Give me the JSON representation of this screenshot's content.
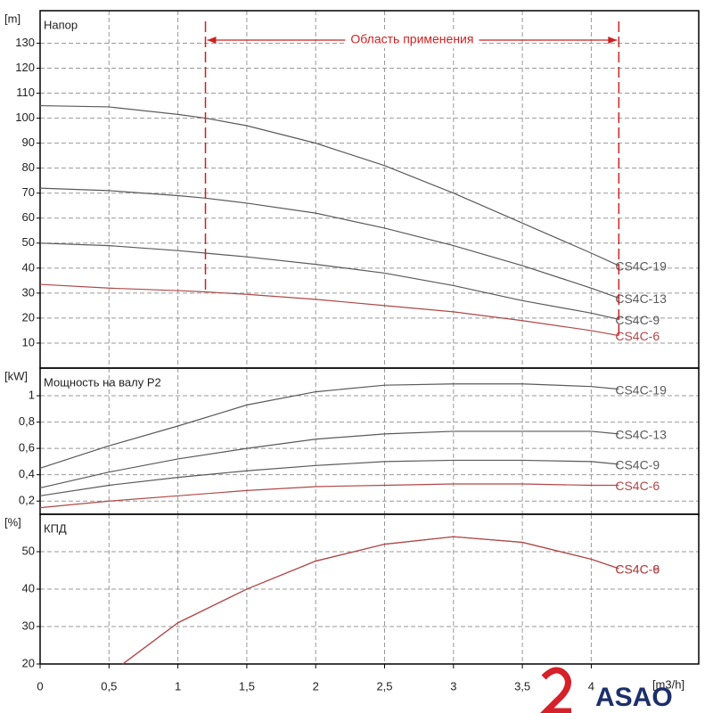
{
  "chart_data": [
    {
      "type": "line",
      "title": "Напор",
      "y_unit": "[m]",
      "x": [
        0,
        0.5,
        1,
        1.2,
        1.5,
        2,
        2.5,
        3,
        3.5,
        4,
        4.2
      ],
      "series": [
        {
          "name": "CS4C-19",
          "color": "#5a5a5a",
          "values": [
            105,
            104.5,
            101.5,
            100,
            97,
            90,
            81,
            70,
            58,
            46,
            41
          ]
        },
        {
          "name": "CS4C-13",
          "color": "#5a5a5a",
          "values": [
            72,
            71,
            69,
            68,
            66,
            62,
            56,
            49,
            41,
            32,
            28
          ]
        },
        {
          "name": "CS4C-9",
          "color": "#5a5a5a",
          "values": [
            50,
            49,
            47,
            46,
            44.5,
            41.5,
            38,
            33,
            27,
            22,
            19.5
          ]
        },
        {
          "name": "CS4C-6",
          "color": "#b04848",
          "values": [
            33.5,
            32,
            31,
            30.5,
            29.5,
            27.5,
            25,
            22.5,
            19,
            15,
            13
          ]
        }
      ],
      "annotation": {
        "text": "Область применения",
        "range": [
          1.2,
          4.2
        ],
        "color": "#cc2222"
      },
      "xlim": [
        0,
        4.78
      ],
      "ylim": [
        0,
        143
      ],
      "yticks": [
        10,
        20,
        30,
        40,
        50,
        60,
        70,
        80,
        90,
        100,
        110,
        120,
        130
      ],
      "grid": true
    },
    {
      "type": "line",
      "title": "Мощность на валу P2",
      "y_unit": "[kW]",
      "x": [
        0,
        0.5,
        1,
        1.5,
        2,
        2.5,
        3,
        3.5,
        4,
        4.2
      ],
      "series": [
        {
          "name": "CS4C-19",
          "color": "#5a5a5a",
          "values": [
            0.45,
            0.62,
            0.77,
            0.93,
            1.03,
            1.08,
            1.09,
            1.09,
            1.07,
            1.05
          ]
        },
        {
          "name": "CS4C-13",
          "color": "#5a5a5a",
          "values": [
            0.3,
            0.42,
            0.52,
            0.6,
            0.67,
            0.71,
            0.73,
            0.73,
            0.73,
            0.71
          ]
        },
        {
          "name": "CS4C-9",
          "color": "#5a5a5a",
          "values": [
            0.24,
            0.32,
            0.38,
            0.43,
            0.47,
            0.5,
            0.51,
            0.51,
            0.5,
            0.48
          ]
        },
        {
          "name": "CS4C-6",
          "color": "#b04848",
          "values": [
            0.15,
            0.2,
            0.24,
            0.28,
            0.31,
            0.32,
            0.33,
            0.33,
            0.32,
            0.32
          ]
        }
      ],
      "xlim": [
        0,
        4.78
      ],
      "ylim": [
        0.1,
        1.21
      ],
      "yticks": [
        {
          "value": 0.2,
          "label": "0,2"
        },
        {
          "value": 0.4,
          "label": "0,4"
        },
        {
          "value": 0.6,
          "label": "0,6"
        },
        {
          "value": 0.8,
          "label": "0,8"
        },
        1
      ],
      "grid": true
    },
    {
      "type": "line",
      "title": "КПД",
      "y_unit": "[%]",
      "x_label": "[m3/h]",
      "x": [
        0.6,
        1,
        1.5,
        2,
        2.5,
        3,
        3.5,
        4,
        4.2
      ],
      "series": [
        {
          "name": "CS4C-6",
          "color": "#b04848",
          "values": [
            20,
            31,
            40,
            47.5,
            52,
            54,
            52.5,
            48,
            45.5
          ]
        },
        {
          "name": "CS4C-9",
          "color": "#b04848",
          "values": [
            20,
            31,
            40,
            47.5,
            52,
            54,
            52.5,
            48,
            45.5
          ]
        }
      ],
      "xlim": [
        0,
        4.78
      ],
      "ylim": [
        20,
        60
      ],
      "yticks": [
        20,
        30,
        40,
        50
      ],
      "xticks": [
        0,
        {
          "value": 0.5,
          "label": "0,5"
        },
        1,
        {
          "value": 1.5,
          "label": "1,5"
        },
        2,
        {
          "value": 2.5,
          "label": "2,5"
        },
        3,
        {
          "value": 3.5,
          "label": "3,5"
        },
        4
      ],
      "grid": true
    }
  ],
  "logo": "ASAO"
}
